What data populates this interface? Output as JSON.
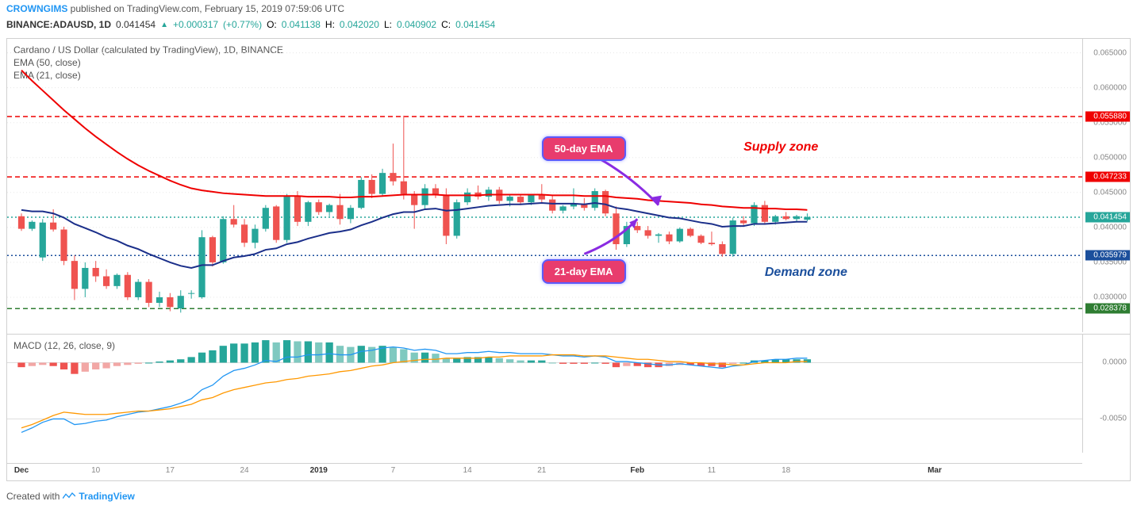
{
  "header": {
    "author": "CROWNGIMS",
    "published_on": " published on TradingView.com, February 15, 2019 07:59:06 UTC"
  },
  "infobar": {
    "symbol": "BINANCE:ADAUSD, 1D",
    "last": "0.041454",
    "change": "+0.000317",
    "change_pct": "(+0.77%)",
    "O_label": "O:",
    "O": "0.041138",
    "H_label": "H:",
    "H": "0.042020",
    "L_label": "L:",
    "L": "0.040902",
    "C_label": "C:",
    "C": "0.041454"
  },
  "main": {
    "title": "Cardano / US Dollar (calculated by TradingView), 1D, BINANCE",
    "ema50_label": "EMA (50, close)",
    "ema21_label": "EMA (21, close)",
    "ylim": [
      0.025,
      0.067
    ],
    "yticks": [
      0.03,
      0.035,
      0.04,
      0.045,
      0.05,
      0.055,
      0.06,
      0.065
    ],
    "ytick_labels": [
      "0.030000",
      "0.035000",
      "0.040000",
      "0.045000",
      "0.050000",
      "0.055000",
      "0.060000",
      "0.065000"
    ],
    "hlines": [
      {
        "y": 0.05588,
        "color": "#ef0000",
        "style": "dashed",
        "tag_bg": "#ef0000",
        "label": "0.055880"
      },
      {
        "y": 0.047233,
        "color": "#ef0000",
        "style": "dashed",
        "tag_bg": "#ef0000",
        "label": "0.047233"
      },
      {
        "y": 0.041454,
        "color": "#26a69a",
        "style": "dotted",
        "tag_bg": "#26a69a",
        "label": "0.041454"
      },
      {
        "y": 0.035979,
        "color": "#1b4f9c",
        "style": "dotted",
        "tag_bg": "#1b4f9c",
        "label": "0.035979"
      },
      {
        "y": 0.028378,
        "color": "#2e7d32",
        "style": "dashed",
        "tag_bg": "#2e7d32",
        "label": "0.028378"
      }
    ],
    "callouts": {
      "ema50": {
        "text": "50-day EMA",
        "arrow_to_x": 60,
        "arrow_to_y": 0.0432
      },
      "ema21": {
        "text": "21-day EMA",
        "arrow_to_x": 58,
        "arrow_to_y": 0.0412
      }
    },
    "zone_labels": {
      "supply": {
        "text": "Supply zone",
        "color": "#ef0000"
      },
      "demand": {
        "text": "Demand zone",
        "color": "#1b4f9c"
      }
    },
    "colors": {
      "up": "#26a69a",
      "down": "#ef5350",
      "ema50": "#ef0000",
      "ema21": "#1b2f8a",
      "grid": "#e8e8e8",
      "bg": "#ffffff"
    },
    "candles": [
      {
        "o": 0.0416,
        "h": 0.042,
        "l": 0.0395,
        "c": 0.0398
      },
      {
        "o": 0.0398,
        "h": 0.041,
        "l": 0.0395,
        "c": 0.0408
      },
      {
        "o": 0.0357,
        "h": 0.0412,
        "l": 0.0352,
        "c": 0.0407
      },
      {
        "o": 0.0407,
        "h": 0.0426,
        "l": 0.0394,
        "c": 0.0397
      },
      {
        "o": 0.0397,
        "h": 0.0401,
        "l": 0.0346,
        "c": 0.0352
      },
      {
        "o": 0.0352,
        "h": 0.036,
        "l": 0.0296,
        "c": 0.0312
      },
      {
        "o": 0.0312,
        "h": 0.035,
        "l": 0.03,
        "c": 0.0342
      },
      {
        "o": 0.0342,
        "h": 0.0352,
        "l": 0.0322,
        "c": 0.033
      },
      {
        "o": 0.033,
        "h": 0.034,
        "l": 0.0312,
        "c": 0.0316
      },
      {
        "o": 0.0316,
        "h": 0.0334,
        "l": 0.0312,
        "c": 0.0332
      },
      {
        "o": 0.0332,
        "h": 0.0336,
        "l": 0.0296,
        "c": 0.03
      },
      {
        "o": 0.03,
        "h": 0.0326,
        "l": 0.0296,
        "c": 0.0322
      },
      {
        "o": 0.0322,
        "h": 0.0326,
        "l": 0.0286,
        "c": 0.0292
      },
      {
        "o": 0.0292,
        "h": 0.0308,
        "l": 0.0286,
        "c": 0.03
      },
      {
        "o": 0.03,
        "h": 0.0306,
        "l": 0.028,
        "c": 0.0286
      },
      {
        "o": 0.0284,
        "h": 0.031,
        "l": 0.0278,
        "c": 0.0302
      },
      {
        "o": 0.0306,
        "h": 0.031,
        "l": 0.0298,
        "c": 0.0306
      },
      {
        "o": 0.03,
        "h": 0.0396,
        "l": 0.0298,
        "c": 0.0386
      },
      {
        "o": 0.0386,
        "h": 0.0388,
        "l": 0.0344,
        "c": 0.035
      },
      {
        "o": 0.035,
        "h": 0.0416,
        "l": 0.0348,
        "c": 0.0412
      },
      {
        "o": 0.0412,
        "h": 0.0432,
        "l": 0.04,
        "c": 0.0404
      },
      {
        "o": 0.0404,
        "h": 0.0412,
        "l": 0.0372,
        "c": 0.0378
      },
      {
        "o": 0.0378,
        "h": 0.0404,
        "l": 0.037,
        "c": 0.0398
      },
      {
        "o": 0.0398,
        "h": 0.0432,
        "l": 0.0394,
        "c": 0.0428
      },
      {
        "o": 0.043,
        "h": 0.0432,
        "l": 0.0378,
        "c": 0.0382
      },
      {
        "o": 0.0382,
        "h": 0.0448,
        "l": 0.0378,
        "c": 0.0444
      },
      {
        "o": 0.0444,
        "h": 0.0452,
        "l": 0.0402,
        "c": 0.0408
      },
      {
        "o": 0.0408,
        "h": 0.0438,
        "l": 0.0402,
        "c": 0.0436
      },
      {
        "o": 0.0436,
        "h": 0.044,
        "l": 0.0418,
        "c": 0.0422
      },
      {
        "o": 0.0422,
        "h": 0.0434,
        "l": 0.0416,
        "c": 0.0432
      },
      {
        "o": 0.0432,
        "h": 0.0448,
        "l": 0.0404,
        "c": 0.0412
      },
      {
        "o": 0.0412,
        "h": 0.0432,
        "l": 0.0406,
        "c": 0.0428
      },
      {
        "o": 0.0428,
        "h": 0.0472,
        "l": 0.0426,
        "c": 0.0468
      },
      {
        "o": 0.0468,
        "h": 0.0476,
        "l": 0.0442,
        "c": 0.0448
      },
      {
        "o": 0.0448,
        "h": 0.0484,
        "l": 0.0444,
        "c": 0.0478
      },
      {
        "o": 0.0478,
        "h": 0.052,
        "l": 0.046,
        "c": 0.0466
      },
      {
        "o": 0.0466,
        "h": 0.056,
        "l": 0.044,
        "c": 0.0448
      },
      {
        "o": 0.0448,
        "h": 0.0452,
        "l": 0.0398,
        "c": 0.0432
      },
      {
        "o": 0.0432,
        "h": 0.0462,
        "l": 0.0426,
        "c": 0.0456
      },
      {
        "o": 0.0456,
        "h": 0.0462,
        "l": 0.0442,
        "c": 0.0446
      },
      {
        "o": 0.0446,
        "h": 0.0456,
        "l": 0.0376,
        "c": 0.0388
      },
      {
        "o": 0.0388,
        "h": 0.044,
        "l": 0.0384,
        "c": 0.0436
      },
      {
        "o": 0.0436,
        "h": 0.0456,
        "l": 0.0432,
        "c": 0.045
      },
      {
        "o": 0.045,
        "h": 0.046,
        "l": 0.044,
        "c": 0.0444
      },
      {
        "o": 0.0444,
        "h": 0.0458,
        "l": 0.0438,
        "c": 0.0454
      },
      {
        "o": 0.0454,
        "h": 0.0458,
        "l": 0.0434,
        "c": 0.0438
      },
      {
        "o": 0.0438,
        "h": 0.0446,
        "l": 0.043,
        "c": 0.0444
      },
      {
        "o": 0.0444,
        "h": 0.0448,
        "l": 0.0432,
        "c": 0.0436
      },
      {
        "o": 0.0436,
        "h": 0.0448,
        "l": 0.0432,
        "c": 0.0446
      },
      {
        "o": 0.0446,
        "h": 0.0462,
        "l": 0.0436,
        "c": 0.044
      },
      {
        "o": 0.044,
        "h": 0.0446,
        "l": 0.042,
        "c": 0.0424
      },
      {
        "o": 0.0424,
        "h": 0.0432,
        "l": 0.042,
        "c": 0.043
      },
      {
        "o": 0.043,
        "h": 0.0456,
        "l": 0.0426,
        "c": 0.0434
      },
      {
        "o": 0.0434,
        "h": 0.0442,
        "l": 0.0424,
        "c": 0.0428
      },
      {
        "o": 0.0428,
        "h": 0.0456,
        "l": 0.0424,
        "c": 0.0452
      },
      {
        "o": 0.0452,
        "h": 0.0454,
        "l": 0.0416,
        "c": 0.042
      },
      {
        "o": 0.042,
        "h": 0.043,
        "l": 0.0368,
        "c": 0.0376
      },
      {
        "o": 0.0376,
        "h": 0.0408,
        "l": 0.0372,
        "c": 0.0402
      },
      {
        "o": 0.0402,
        "h": 0.0408,
        "l": 0.0392,
        "c": 0.0396
      },
      {
        "o": 0.0396,
        "h": 0.0402,
        "l": 0.0384,
        "c": 0.0388
      },
      {
        "o": 0.0388,
        "h": 0.0392,
        "l": 0.0378,
        "c": 0.039
      },
      {
        "o": 0.039,
        "h": 0.0394,
        "l": 0.0376,
        "c": 0.038
      },
      {
        "o": 0.038,
        "h": 0.04,
        "l": 0.0378,
        "c": 0.0398
      },
      {
        "o": 0.0398,
        "h": 0.04,
        "l": 0.0386,
        "c": 0.0388
      },
      {
        "o": 0.0388,
        "h": 0.039,
        "l": 0.0376,
        "c": 0.0378
      },
      {
        "o": 0.0378,
        "h": 0.0394,
        "l": 0.0374,
        "c": 0.0376
      },
      {
        "o": 0.0376,
        "h": 0.038,
        "l": 0.0358,
        "c": 0.0362
      },
      {
        "o": 0.0362,
        "h": 0.0414,
        "l": 0.0358,
        "c": 0.041
      },
      {
        "o": 0.041,
        "h": 0.0416,
        "l": 0.0402,
        "c": 0.0406
      },
      {
        "o": 0.0406,
        "h": 0.0436,
        "l": 0.0402,
        "c": 0.0432
      },
      {
        "o": 0.0432,
        "h": 0.0438,
        "l": 0.0404,
        "c": 0.0408
      },
      {
        "o": 0.0408,
        "h": 0.0418,
        "l": 0.0404,
        "c": 0.0416
      },
      {
        "o": 0.0416,
        "h": 0.0422,
        "l": 0.041,
        "c": 0.0412
      },
      {
        "o": 0.0412,
        "h": 0.0418,
        "l": 0.0408,
        "c": 0.0416
      },
      {
        "o": 0.0411,
        "h": 0.042,
        "l": 0.0409,
        "c": 0.0415
      }
    ],
    "ema50": [
      0.0625,
      0.061,
      0.0596,
      0.0582,
      0.0568,
      0.0555,
      0.0542,
      0.053,
      0.0519,
      0.0508,
      0.0498,
      0.0489,
      0.0481,
      0.0474,
      0.0467,
      0.0461,
      0.0456,
      0.0453,
      0.0451,
      0.0449,
      0.0448,
      0.0447,
      0.0446,
      0.0445,
      0.0445,
      0.0445,
      0.0445,
      0.0444,
      0.0444,
      0.0444,
      0.0443,
      0.0443,
      0.0444,
      0.0444,
      0.0445,
      0.0446,
      0.0447,
      0.0447,
      0.0447,
      0.0447,
      0.0446,
      0.0446,
      0.0446,
      0.0446,
      0.0447,
      0.0447,
      0.0447,
      0.0447,
      0.0447,
      0.0447,
      0.0446,
      0.0446,
      0.0446,
      0.0445,
      0.0445,
      0.0445,
      0.0443,
      0.0442,
      0.0441,
      0.0439,
      0.0438,
      0.0437,
      0.0436,
      0.0435,
      0.0433,
      0.0432,
      0.043,
      0.0429,
      0.0428,
      0.0428,
      0.0427,
      0.0427,
      0.0426,
      0.0426,
      0.0425
    ],
    "ema21": [
      0.0425,
      0.0423,
      0.0423,
      0.042,
      0.0414,
      0.0405,
      0.0399,
      0.0393,
      0.0386,
      0.0381,
      0.0374,
      0.0369,
      0.0362,
      0.0356,
      0.035,
      0.0345,
      0.0342,
      0.0346,
      0.0346,
      0.0352,
      0.0357,
      0.0359,
      0.0362,
      0.0368,
      0.037,
      0.0376,
      0.0379,
      0.0384,
      0.0388,
      0.0392,
      0.0394,
      0.0397,
      0.0403,
      0.0408,
      0.0414,
      0.0419,
      0.0422,
      0.0422,
      0.0426,
      0.0427,
      0.0424,
      0.0425,
      0.0427,
      0.0429,
      0.0431,
      0.0432,
      0.0433,
      0.0433,
      0.0434,
      0.0435,
      0.0434,
      0.0434,
      0.0434,
      0.0433,
      0.0435,
      0.0433,
      0.0428,
      0.0426,
      0.0423,
      0.042,
      0.0417,
      0.0414,
      0.0413,
      0.041,
      0.0407,
      0.0405,
      0.0401,
      0.0402,
      0.0402,
      0.0405,
      0.0405,
      0.0406,
      0.0407,
      0.0408,
      0.0408
    ]
  },
  "macd": {
    "label": "MACD (12, 26, close, 9)",
    "ylim": [
      -0.008,
      0.0025
    ],
    "yticks": [
      0.0,
      -0.005
    ],
    "ytick_labels": [
      "0.0000",
      "-0.0050"
    ],
    "hist": [
      -0.0004,
      -0.0003,
      -0.0002,
      -0.0003,
      -0.0006,
      -0.001,
      -0.0008,
      -0.0006,
      -0.0005,
      -0.0003,
      -0.0002,
      -0.0001,
      0.0,
      0.0001,
      0.0002,
      0.0003,
      0.0005,
      0.0009,
      0.0011,
      0.0015,
      0.0017,
      0.0017,
      0.0018,
      0.002,
      0.0018,
      0.002,
      0.0019,
      0.0019,
      0.0018,
      0.0018,
      0.0015,
      0.0014,
      0.0015,
      0.0014,
      0.0015,
      0.0014,
      0.0012,
      0.0009,
      0.0009,
      0.0008,
      0.0004,
      0.0004,
      0.0005,
      0.0005,
      0.0005,
      0.0004,
      0.0003,
      0.0002,
      0.0002,
      0.0002,
      0.0,
      -0.0001,
      -0.0001,
      -0.0001,
      0.0,
      -0.0001,
      -0.0004,
      -0.0003,
      -0.0003,
      -0.0004,
      -0.0004,
      -0.0003,
      -0.0002,
      -0.0002,
      -0.0003,
      -0.0003,
      -0.0004,
      -0.0001,
      0.0,
      0.0002,
      0.0002,
      0.0003,
      0.0003,
      0.0003,
      0.0003
    ],
    "macd_line": [
      -0.0062,
      -0.0058,
      -0.0053,
      -0.005,
      -0.005,
      -0.0055,
      -0.0054,
      -0.0052,
      -0.0051,
      -0.0048,
      -0.0046,
      -0.0044,
      -0.0043,
      -0.0041,
      -0.0039,
      -0.0036,
      -0.0032,
      -0.0024,
      -0.002,
      -0.0012,
      -0.0007,
      -0.0005,
      -0.0002,
      0.0002,
      0.0001,
      0.0005,
      0.0005,
      0.0007,
      0.0007,
      0.0008,
      0.0007,
      0.0007,
      0.001,
      0.0011,
      0.0013,
      0.0014,
      0.0013,
      0.0011,
      0.0012,
      0.0011,
      0.0008,
      0.0008,
      0.0009,
      0.0009,
      0.001,
      0.0009,
      0.0009,
      0.0008,
      0.0008,
      0.0008,
      0.0007,
      0.0006,
      0.0006,
      0.0005,
      0.0006,
      0.0005,
      0.0001,
      0.0001,
      0.0,
      -0.0001,
      -0.0002,
      -0.0002,
      -0.0001,
      -0.0002,
      -0.0003,
      -0.0004,
      -0.0005,
      -0.0003,
      -0.0002,
      0.0001,
      0.0002,
      0.0003,
      0.0003,
      0.0004,
      0.0004
    ],
    "signal_line": [
      -0.0058,
      -0.0055,
      -0.0051,
      -0.0047,
      -0.0044,
      -0.0045,
      -0.0046,
      -0.0046,
      -0.0046,
      -0.0045,
      -0.0044,
      -0.0043,
      -0.0043,
      -0.0042,
      -0.0041,
      -0.0039,
      -0.0037,
      -0.0033,
      -0.0031,
      -0.0027,
      -0.0024,
      -0.0022,
      -0.002,
      -0.0018,
      -0.0017,
      -0.0015,
      -0.0014,
      -0.0012,
      -0.0011,
      -0.001,
      -0.0008,
      -0.0007,
      -0.0005,
      -0.0003,
      -0.0002,
      0.0,
      0.0001,
      0.0002,
      0.0003,
      0.0003,
      0.0004,
      0.0004,
      0.0004,
      0.0004,
      0.0005,
      0.0005,
      0.0006,
      0.0006,
      0.0006,
      0.0006,
      0.0007,
      0.0007,
      0.0007,
      0.0006,
      0.0006,
      0.0006,
      0.0005,
      0.0004,
      0.0003,
      0.0003,
      0.0002,
      0.0001,
      0.0001,
      0.0,
      0.0,
      -0.0001,
      -0.0001,
      -0.0002,
      -0.0002,
      -0.0001,
      0.0,
      0.0,
      0.0,
      0.0001,
      0.0001
    ],
    "colors": {
      "macd": "#2196f3",
      "signal": "#ff9800",
      "hist_up": "#26a69a",
      "hist_up_light": "#7fc9c0",
      "hist_down": "#ef5350",
      "hist_down_light": "#f2a7a5"
    }
  },
  "xaxis": {
    "n": 100,
    "candles_count": 75,
    "ticks": [
      {
        "i": 0,
        "label": "Dec",
        "bold": true
      },
      {
        "i": 7,
        "label": "10"
      },
      {
        "i": 14,
        "label": "17"
      },
      {
        "i": 21,
        "label": "24"
      },
      {
        "i": 28,
        "label": "2019",
        "bold": true
      },
      {
        "i": 35,
        "label": "7"
      },
      {
        "i": 42,
        "label": "14"
      },
      {
        "i": 49,
        "label": "21"
      },
      {
        "i": 58,
        "label": "Feb",
        "bold": true
      },
      {
        "i": 65,
        "label": "11"
      },
      {
        "i": 72,
        "label": "18"
      },
      {
        "i": 86,
        "label": "Mar",
        "bold": true
      }
    ]
  },
  "footer": {
    "text": "Created with ",
    "brand": "TradingView"
  }
}
